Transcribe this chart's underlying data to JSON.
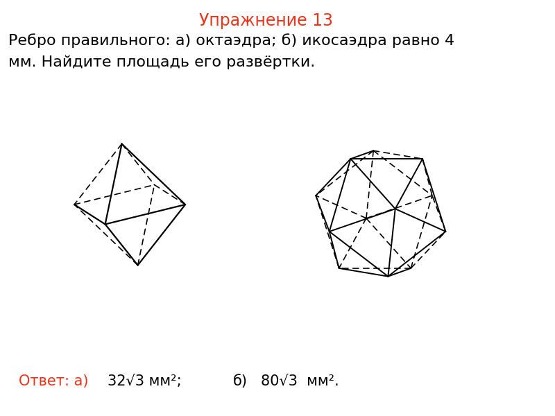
{
  "title": "Упражнение 13",
  "title_color": "#e8351a",
  "title_fontsize": 17,
  "problem_text_line1": "Ребро правильного: а) октаэдра; б) икосаэдра равно 4",
  "problem_text_line2": "мм. Найдите площадь его развёртки.",
  "problem_fontsize": 16,
  "answer_label": "Ответ: а)",
  "answer_label_color": "#e8351a",
  "answer_a_formula": "32√3 мм²;",
  "answer_b_label": "б)",
  "answer_b_formula": "80√3  мм².",
  "answer_fontsize": 15,
  "background_color": "#ffffff"
}
